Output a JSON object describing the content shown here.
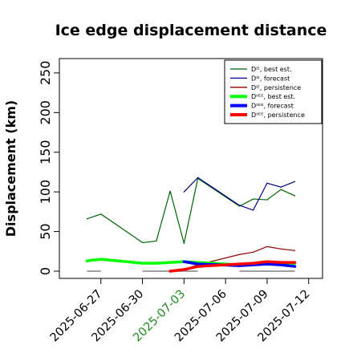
{
  "chart_data": {
    "type": "line",
    "title": "Ice edge displacement distance",
    "ylabel": "Displacement (km)",
    "xlabel": "",
    "ylim": [
      0,
      260
    ],
    "yticks": [
      0,
      50,
      100,
      150,
      200,
      250
    ],
    "ytick_labels": [
      "0",
      "50",
      "100",
      "150",
      "200",
      "250"
    ],
    "xlim": [
      "2025-06-24",
      "2025-07-13"
    ],
    "xticks": [
      "2025-06-27",
      "2025-06-30",
      "2025-07-03",
      "2025-07-06",
      "2025-07-09",
      "2025-07-12"
    ],
    "xtick_labels": [
      "2025-06-27",
      "2025-06-30",
      "2025-07-03",
      "2025-07-06",
      "2025-07-09",
      "2025-07-12"
    ],
    "xtick_highlight": {
      "label": "2025-07-03",
      "color": "#228b22"
    },
    "grid": false,
    "legend_position": "top-right",
    "legend": [
      {
        "label": "Dᴵᴱ, best est.",
        "color": "#006400",
        "style": "thin"
      },
      {
        "label": "Dᴵᴱ, forecast",
        "color": "#00008b",
        "style": "thin"
      },
      {
        "label": "Dᴵᴱ, persistence",
        "color": "#8b0000",
        "style": "thin"
      },
      {
        "label": "Dᴵᴵᴱᴱ, best est.",
        "color": "#00ff00",
        "style": "thick"
      },
      {
        "label": "Dᴵᴵᴱᴱ, forecast",
        "color": "#0000ff",
        "style": "thick"
      },
      {
        "label": "Dᴵᴵᴱᴱ, persistence",
        "color": "#ff0000",
        "style": "thick"
      }
    ],
    "series": [
      {
        "key": "ie_best",
        "color": "#006400",
        "style": "thin",
        "x": [
          "2025-06-26",
          "2025-06-27",
          "2025-06-30",
          "2025-07-01",
          "2025-07-02",
          "2025-07-03",
          "2025-07-04",
          "2025-07-07",
          "2025-07-08",
          "2025-07-09",
          "2025-07-10",
          "2025-07-11"
        ],
        "y": [
          66,
          72,
          36,
          38,
          101,
          35,
          117,
          82,
          91,
          90,
          103,
          95
        ]
      },
      {
        "key": "ie_forecast",
        "color": "#00008b",
        "style": "thin",
        "x": [
          "2025-07-03",
          "2025-07-04",
          "2025-07-07",
          "2025-07-08",
          "2025-07-09",
          "2025-07-10",
          "2025-07-11"
        ],
        "y": [
          100,
          118,
          83,
          77,
          111,
          106,
          113
        ]
      },
      {
        "key": "ie_persistence",
        "color": "#8b0000",
        "style": "thin",
        "x": [
          "2025-07-02",
          "2025-07-03",
          "2025-07-04",
          "2025-07-07",
          "2025-07-08",
          "2025-07-09",
          "2025-07-10",
          "2025-07-11"
        ],
        "y": [
          0,
          2,
          8,
          21,
          24,
          31,
          28,
          26
        ]
      },
      {
        "key": "iiee_best",
        "color": "#00ff00",
        "style": "thick",
        "x": [
          "2025-06-26",
          "2025-06-27",
          "2025-06-30",
          "2025-07-01",
          "2025-07-02",
          "2025-07-03",
          "2025-07-07",
          "2025-07-08",
          "2025-07-09",
          "2025-07-10",
          "2025-07-11"
        ],
        "y": [
          13,
          15,
          10,
          10,
          11,
          12,
          8,
          9,
          11,
          9,
          10
        ]
      },
      {
        "key": "iiee_forecast",
        "color": "#0000ff",
        "style": "thick",
        "x": [
          "2025-07-03",
          "2025-07-04",
          "2025-07-07",
          "2025-07-08",
          "2025-07-09",
          "2025-07-10",
          "2025-07-11"
        ],
        "y": [
          12,
          9,
          7,
          8,
          9,
          8,
          6
        ]
      },
      {
        "key": "iiee_persistence",
        "color": "#ff0000",
        "style": "thick",
        "x": [
          "2025-07-02",
          "2025-07-03",
          "2025-07-04",
          "2025-07-07",
          "2025-07-08",
          "2025-07-09",
          "2025-07-10",
          "2025-07-11"
        ],
        "y": [
          0,
          2,
          6,
          9,
          10,
          12,
          11,
          11
        ]
      }
    ],
    "baseline_segments": {
      "color": "#808080",
      "y": 0,
      "ranges": [
        [
          "2025-06-26",
          "2025-06-27"
        ],
        [
          "2025-06-30",
          "2025-07-04"
        ],
        [
          "2025-07-07",
          "2025-07-11"
        ]
      ]
    }
  }
}
